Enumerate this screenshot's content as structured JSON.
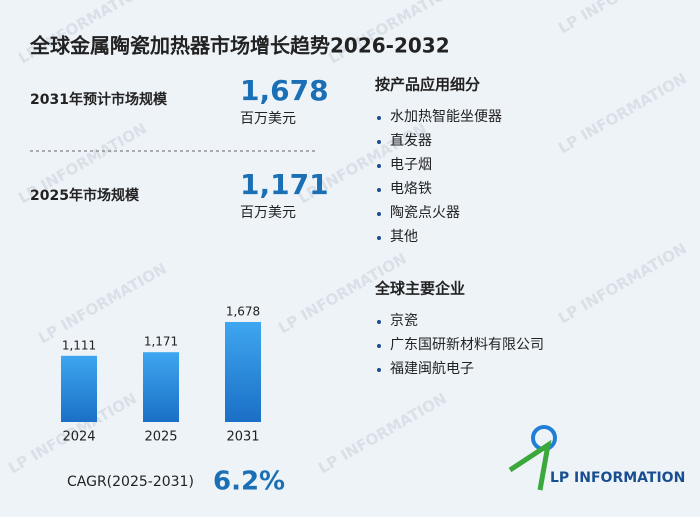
{
  "title": "全球金属陶瓷加热器市场增长趋势2026-2032",
  "watermark": "LP INFORMATION",
  "stats": [
    {
      "label": "2031年预计市场规模",
      "value": "1,678",
      "unit": "百万美元"
    },
    {
      "label": "2025年市场规模",
      "value": "1,171",
      "unit": "百万美元"
    }
  ],
  "segments": {
    "heading": "按产品应用细分",
    "items": [
      "水加热智能坐便器",
      "直发器",
      "电子烟",
      "电烙铁",
      "陶瓷点火器",
      "其他"
    ]
  },
  "companies": {
    "heading": "全球主要企业",
    "items": [
      "京瓷",
      "广东国研新材料有限公司",
      "福建闽航电子"
    ]
  },
  "cagr": {
    "label": "CAGR(2025-2031)",
    "value": "6.2%"
  },
  "logo": {
    "text": "LP INFORMATION"
  },
  "chart_data": {
    "type": "bar",
    "categories": [
      "2024",
      "2025",
      "2031"
    ],
    "values": [
      1111,
      1171,
      1678
    ],
    "value_labels": [
      "1,111",
      "1,171",
      "1,678"
    ],
    "color": "#1f7fd6"
  }
}
